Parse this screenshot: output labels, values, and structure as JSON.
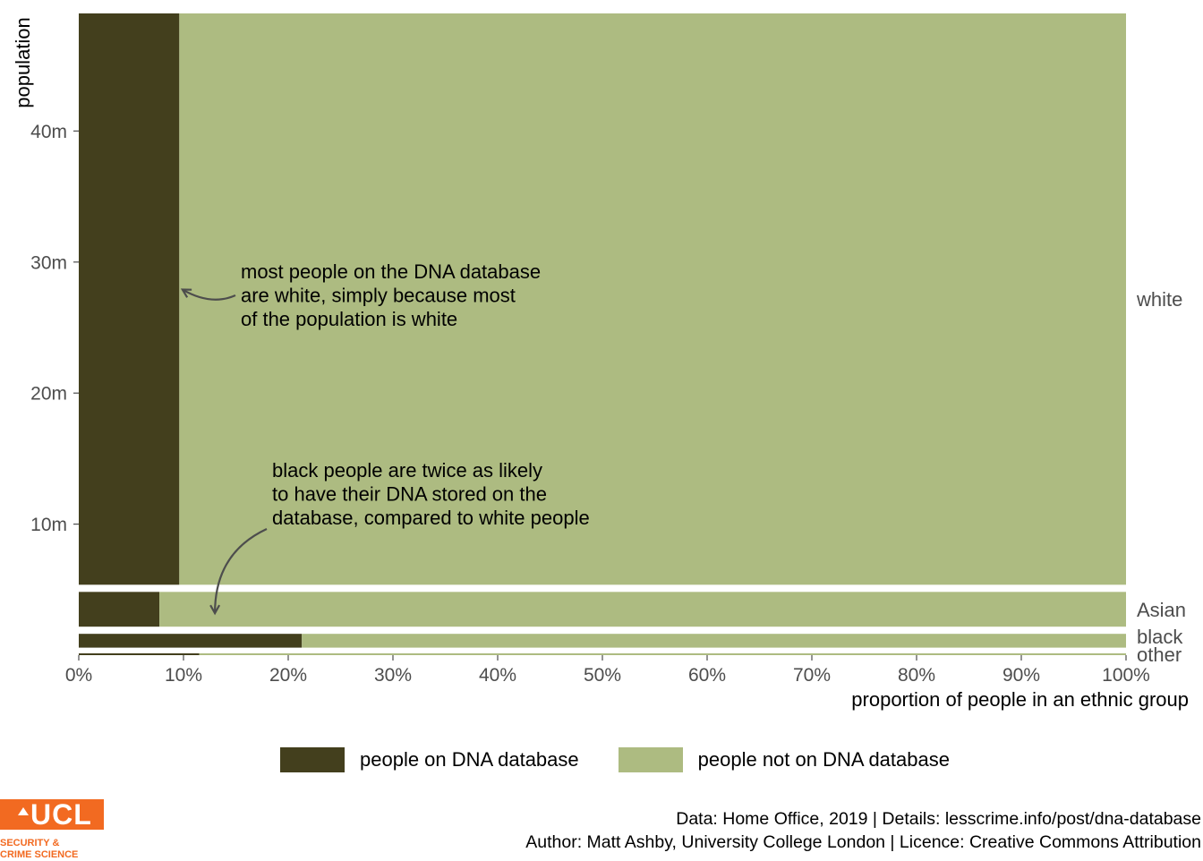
{
  "chart_data": {
    "type": "mosaic",
    "xlabel": "proportion of people in an ethnic group",
    "ylabel": "population",
    "xlim": [
      0,
      1
    ],
    "ylim": [
      0,
      49
    ],
    "x_ticks": [
      0,
      0.1,
      0.2,
      0.3,
      0.4,
      0.5,
      0.6,
      0.7,
      0.8,
      0.9,
      1.0
    ],
    "x_tick_labels": [
      "0%",
      "10%",
      "20%",
      "30%",
      "40%",
      "50%",
      "60%",
      "70%",
      "80%",
      "90%",
      "100%"
    ],
    "y_ticks": [
      10,
      20,
      30,
      40
    ],
    "y_tick_labels": [
      "10m",
      "20m",
      "30m",
      "40m"
    ],
    "series": [
      {
        "name": "people on DNA database",
        "color": "#433f1d"
      },
      {
        "name": "people not on DNA database",
        "color": "#adbb81"
      }
    ],
    "groups": [
      {
        "label": "other",
        "population": 0.3,
        "proportion_on_database": 0.115
      },
      {
        "label": "black",
        "population": 1.6,
        "proportion_on_database": 0.213
      },
      {
        "label": "Asian",
        "population": 3.2,
        "proportion_on_database": 0.077
      },
      {
        "label": "white",
        "population": 42.5,
        "proportion_on_database": 0.096
      }
    ],
    "annotations": [
      {
        "lines": [
          "most people on the DNA database",
          "are white, simply because most",
          "of the population is white"
        ],
        "arrow_to": [
          0.099,
          27.9
        ]
      },
      {
        "lines": [
          "black people are twice as likely",
          "to have their DNA stored on the",
          "database, compared to white people"
        ],
        "arrow_to": [
          0.13,
          3.2
        ]
      }
    ]
  },
  "caption": {
    "line1": "Data: Home Office, 2019 | Details: lesscrime.info/post/dna-database",
    "line2": "Author: Matt Ashby, University College London | Licence: Creative Commons Attribution"
  },
  "logo": {
    "wordmark": "UCL",
    "subtitle_line1": "SECURITY &",
    "subtitle_line2": "CRIME SCIENCE",
    "color": "#f26a21"
  }
}
